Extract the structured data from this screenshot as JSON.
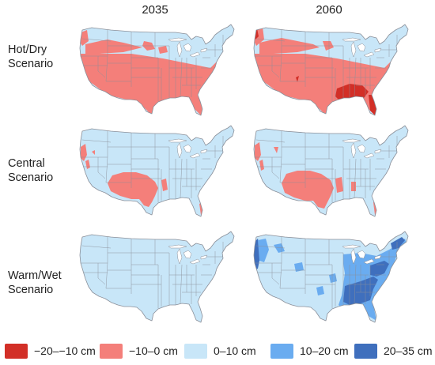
{
  "columns": [
    "2035",
    "2060"
  ],
  "rows": [
    {
      "label_line1": "Hot/Dry",
      "label_line2": "Scenario"
    },
    {
      "label_line1": "Central",
      "label_line2": "Scenario"
    },
    {
      "label_line1": "Warm/Wet",
      "label_line2": "Scenario"
    }
  ],
  "legend": [
    {
      "label": "−20–−10 cm",
      "color": "#d22f27"
    },
    {
      "label": "−10–0 cm",
      "color": "#f47f7a"
    },
    {
      "label": "0–10 cm",
      "color": "#c8e6f8"
    },
    {
      "label": "10–20 cm",
      "color": "#6aacf0"
    },
    {
      "label": "20–35 cm",
      "color": "#3f6fbd"
    }
  ],
  "colors": {
    "border": "#8a8f99",
    "base": "#c8e6f8"
  },
  "maps": [
    {
      "scenario": "Hot/Dry",
      "year": "2035",
      "pattern": "hot_2035"
    },
    {
      "scenario": "Hot/Dry",
      "year": "2060",
      "pattern": "hot_2060"
    },
    {
      "scenario": "Central",
      "year": "2035",
      "pattern": "central_2035"
    },
    {
      "scenario": "Central",
      "year": "2060",
      "pattern": "central_2060"
    },
    {
      "scenario": "Warm/Wet",
      "year": "2035",
      "pattern": "wet_2035"
    },
    {
      "scenario": "Warm/Wet",
      "year": "2060",
      "pattern": "wet_2060"
    }
  ]
}
